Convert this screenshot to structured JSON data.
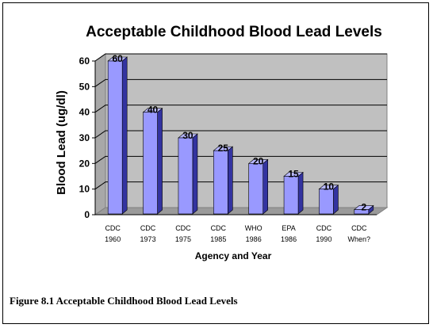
{
  "colors": {
    "bar_front": "#9999FF",
    "bar_top": "#B8B8FF",
    "bar_side": "#3333A0",
    "plot_wall": "#C0C0C0",
    "plot_floor": "#9A9A9A",
    "grid": "#000000"
  },
  "caption": "Figure 8.1 Acceptable Childhood Blood Lead Levels",
  "chart_data": {
    "type": "bar",
    "title": "Acceptable Childhood Blood Lead Levels",
    "xlabel": "Agency and Year",
    "ylabel": "Blood Lead (ug/dl)",
    "categories": [
      [
        "CDC",
        "1960"
      ],
      [
        "CDC",
        "1973"
      ],
      [
        "CDC",
        "1975"
      ],
      [
        "CDC",
        "1985"
      ],
      [
        "WHO",
        "1986"
      ],
      [
        "EPA",
        "1986"
      ],
      [
        "CDC",
        "1990"
      ],
      [
        "CDC",
        "When?"
      ]
    ],
    "values": [
      60,
      40,
      30,
      25,
      20,
      15,
      10,
      2
    ],
    "data_labels": [
      "60",
      "40",
      "30",
      "25",
      "20",
      "15",
      "10",
      "2"
    ],
    "ylim": [
      0,
      60
    ],
    "yticks": [
      0,
      10,
      20,
      30,
      40,
      50,
      60
    ],
    "grid": true,
    "legend": false
  }
}
